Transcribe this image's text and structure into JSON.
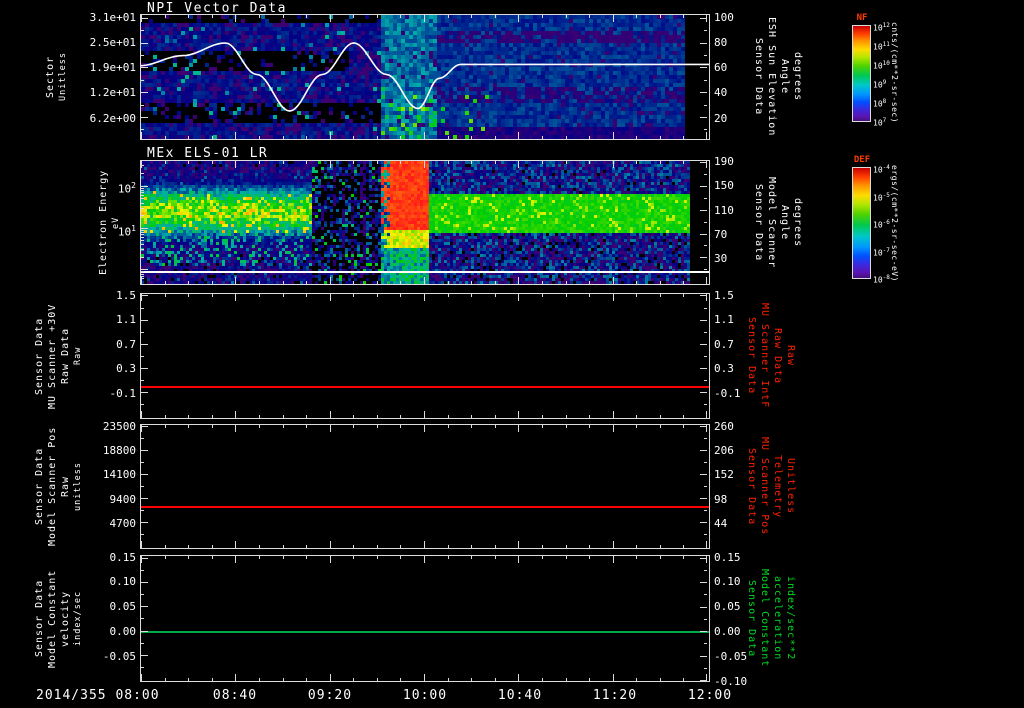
{
  "figure": {
    "background": "#000000"
  },
  "x_axis": {
    "date_label": "2014/355",
    "ticks": [
      "08:00",
      "08:40",
      "09:20",
      "10:00",
      "10:40",
      "11:20",
      "12:00"
    ]
  },
  "panels": [
    {
      "key": "npi",
      "title": "NPI Vector Data",
      "left_label": {
        "lines": [
          "Sector",
          "Unitless"
        ],
        "color": "#ffffff"
      },
      "left_ticks": [
        "3.1e+01",
        "2.5e+01",
        "1.9e+01",
        "1.2e+01",
        "6.2e+00"
      ],
      "right_ticks": [
        "100",
        "80",
        "60",
        "40",
        "20"
      ],
      "right_label": {
        "lines": [
          "Sensor Data",
          "ESH Sun Elevation",
          "Angle",
          "degrees"
        ],
        "color": "#ffffff"
      },
      "colorbar": {
        "name": "NF",
        "name_color": "#ff3c00",
        "ticks": [
          "10^12",
          "10^11",
          "10^10",
          "10^9",
          "10^8",
          "10^7"
        ],
        "unit": "cnts/(cm**2-sr-sec)"
      }
    },
    {
      "key": "els",
      "title": "MEx ELS-01 LR",
      "left_label": {
        "lines": [
          "Electron Energy",
          "eV"
        ],
        "color": "#ffffff"
      },
      "left_ticks": [
        "10^2",
        "10^1"
      ],
      "right_ticks": [
        "190",
        "150",
        "110",
        "70",
        "30"
      ],
      "right_label": {
        "lines": [
          "Sensor Data",
          "Model Scanner",
          "Angle",
          "degrees"
        ],
        "color": "#ffffff"
      },
      "colorbar": {
        "name": "DEF",
        "name_color": "#ff3c00",
        "ticks": [
          "10^-4",
          "10^-5",
          "10^-6",
          "10^-7",
          "10^-8"
        ],
        "unit": "ergs/(cm**2-sr-sec-eV)"
      }
    },
    {
      "key": "mu_scanner_30v",
      "left_label": {
        "lines": [
          "Sensor Data",
          "MU Scanner +30V",
          "Raw Data",
          "Raw"
        ],
        "color": "#ffffff"
      },
      "left_ticks": [
        "1.5",
        "1.1",
        "0.7",
        "0.3",
        "-0.1"
      ],
      "right_ticks": [
        "1.5",
        "1.1",
        "0.7",
        "0.3",
        "-0.1"
      ],
      "right_label": {
        "lines": [
          "Sensor Data",
          "MU Scanner IntF",
          "Raw Data",
          "Raw"
        ],
        "color": "#ff2200"
      }
    },
    {
      "key": "model_scanner_pos",
      "left_label": {
        "lines": [
          "Sensor Data",
          "Model Scanner Pos",
          "Raw",
          "unitless"
        ],
        "color": "#ffffff"
      },
      "left_ticks": [
        "23500",
        "18800",
        "14100",
        "9400",
        "4700"
      ],
      "right_ticks": [
        "260",
        "206",
        "152",
        "98",
        "44"
      ],
      "right_label": {
        "lines": [
          "Sensor Data",
          "MU Scanner Pos",
          "Telemetry",
          "Unitless"
        ],
        "color": "#ff2200"
      }
    },
    {
      "key": "model_constant",
      "left_label": {
        "lines": [
          "Sensor Data",
          "Model Constant",
          "velocity",
          "index/sec"
        ],
        "color": "#ffffff"
      },
      "left_ticks": [
        "0.15",
        "0.10",
        "0.05",
        "0.00",
        "-0.05"
      ],
      "right_ticks": [
        "0.15",
        "0.10",
        "0.05",
        "0.00",
        "-0.05",
        "-0.10"
      ],
      "right_label": {
        "lines": [
          "Sensor Data",
          "Model Constant",
          "acceleration",
          "index/sec**2"
        ],
        "color": "#00dd22"
      }
    }
  ],
  "chart_data": [
    {
      "type": "heatmap",
      "panel": "NPI Vector Data",
      "x_range": [
        "2014/355 08:00",
        "2014/355 12:00"
      ],
      "x_ticks": [
        "08:00",
        "08:40",
        "09:20",
        "10:00",
        "10:40",
        "11:20",
        "12:00"
      ],
      "ylabel": "Sector (Unitless)",
      "y_ticks": [
        6.2,
        12,
        19,
        25,
        31
      ],
      "right_axis": {
        "label": "ESH Sun Elevation Angle (degrees)",
        "ticks": [
          20,
          40,
          60,
          80,
          100
        ]
      },
      "colorbar": {
        "name": "NF",
        "unit": "cnts/(cm**2-sr-sec)",
        "tick_exponents": [
          12,
          11,
          10,
          9,
          8,
          7
        ]
      },
      "summary": "Sector-vs-time count spectrogram: mostly low blue/purple counts; black dropout bands in several sectors before ~09:50; brighter blue-cyan interval ~09:35-10:05 with green speckles in low sectors; near-uniform blue after 10:00; data ends ~11:50.",
      "overlay_line": {
        "label": "ESH Sun Elevation Angle (white line, right axis degrees)",
        "x_hours_from_0800": [
          0,
          0.3,
          0.6,
          0.82,
          1.05,
          1.28,
          1.5,
          1.73,
          1.95,
          2.1,
          2.25,
          4.0
        ],
        "y_degrees": [
          62,
          70,
          80,
          55,
          26,
          55,
          80,
          55,
          28,
          52,
          63,
          63
        ]
      }
    },
    {
      "type": "heatmap",
      "panel": "MEx ELS-01 LR",
      "ylabel": "Electron Energy (eV)",
      "y_scale": "log",
      "y_ticks": [
        10,
        100
      ],
      "right_axis": {
        "label": "Model Scanner Angle (degrees)",
        "ticks": [
          30,
          70,
          110,
          150,
          190
        ]
      },
      "colorbar": {
        "name": "DEF",
        "unit": "ergs/(cm**2-sr-sec-eV)",
        "tick_exponents": [
          -4,
          -5,
          -6,
          -7,
          -8
        ]
      },
      "summary": "Electron energy-time spectrogram: intense green-orange flux ~20-80 eV from 08:00-09:10; sparse striped dropouts 09:10-09:50; saturated red enhancement above ~30 eV ~09:50-10:05; steady green band ~20-60 eV from 10:05 to ~11:55; white horizontal marker line near panel bottom."
    },
    {
      "type": "line",
      "panel": "MU Scanner +30V Raw Data Raw",
      "color": "#ff0000",
      "x_range_hours": [
        0,
        4
      ],
      "y": [
        0.0,
        0.0
      ],
      "note": "constant value for entire interval",
      "y_ticks": [
        -0.1,
        0.3,
        0.7,
        1.1,
        1.5
      ]
    },
    {
      "type": "line",
      "panel": "Model Scanner Pos Raw (unitless)",
      "color": "#ff0000",
      "x_range_hours": [
        0,
        4
      ],
      "y": [
        8000,
        8000
      ],
      "note": "constant value for entire interval",
      "y_ticks": [
        4700,
        9400,
        14100,
        18800,
        23500
      ],
      "right_axis_ticks": [
        44,
        98,
        152,
        206,
        260
      ]
    },
    {
      "type": "line",
      "panel": "Model Constant velocity (index/sec)",
      "color": "#00aa44",
      "x_range_hours": [
        0,
        4
      ],
      "y": [
        0.0,
        0.0
      ],
      "note": "constant value for entire interval",
      "y_ticks": [
        -0.1,
        -0.05,
        0.0,
        0.05,
        0.1,
        0.15
      ]
    }
  ]
}
